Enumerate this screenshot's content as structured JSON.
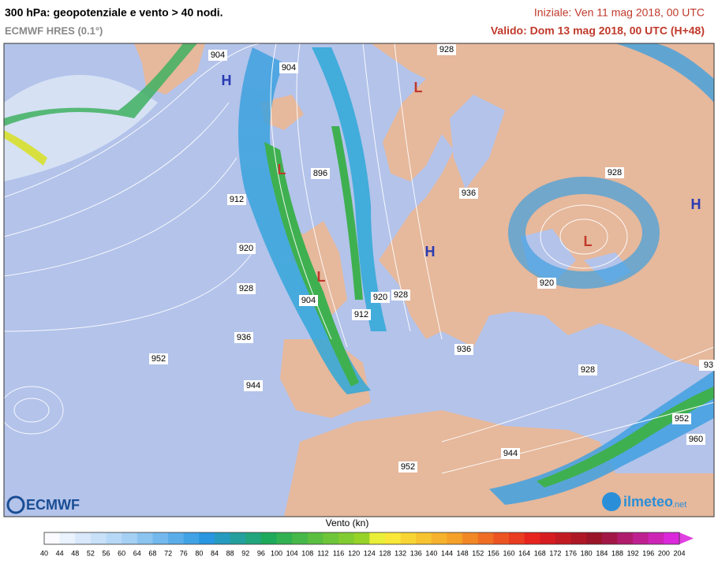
{
  "header": {
    "title": "300 hPa: geopotenziale e vento > 40 nodi.",
    "subtitle": "ECMWF HRES (0.1°)",
    "init": "Iniziale: Ven 11 mag 2018, 00 UTC",
    "valid": "Valido: Dom 13 mag 2018, 00 UTC (H+48)"
  },
  "contour_labels": [
    904,
    904,
    928,
    896,
    912,
    920,
    928,
    904,
    912,
    920,
    928,
    936,
    928,
    920,
    936,
    952,
    944,
    936,
    928,
    93,
    952,
    960,
    944,
    952
  ],
  "centers": [
    "H",
    "L",
    "L",
    "H",
    "L",
    "L",
    "H"
  ],
  "logos": {
    "left": "ECMWF",
    "right": "ilmeteo",
    "right_suffix": ".net"
  },
  "colorbar": {
    "title": "Vento (kn)",
    "ticks": [
      40,
      44,
      48,
      52,
      56,
      60,
      64,
      68,
      72,
      76,
      80,
      84,
      88,
      92,
      96,
      100,
      104,
      108,
      112,
      116,
      120,
      124,
      128,
      132,
      136,
      140,
      144,
      148,
      152,
      156,
      160,
      164,
      168,
      172,
      176,
      180,
      184,
      188,
      192,
      196,
      200,
      204
    ]
  }
}
